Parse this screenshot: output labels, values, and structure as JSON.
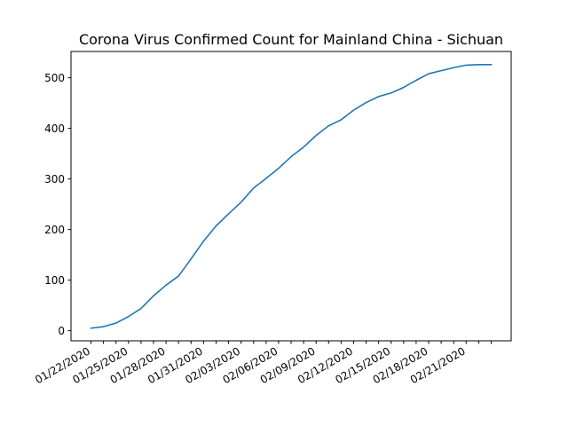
{
  "chart_data": {
    "type": "line",
    "title": "Corona Virus Confirmed Count for Mainland China - Sichuan",
    "xlabel": "",
    "ylabel": "",
    "grid": false,
    "x": [
      "01/22/2020",
      "01/23/2020",
      "01/24/2020",
      "01/25/2020",
      "01/26/2020",
      "01/27/2020",
      "01/28/2020",
      "01/29/2020",
      "01/30/2020",
      "01/31/2020",
      "02/01/2020",
      "02/02/2020",
      "02/03/2020",
      "02/04/2020",
      "02/05/2020",
      "02/06/2020",
      "02/07/2020",
      "02/08/2020",
      "02/09/2020",
      "02/10/2020",
      "02/11/2020",
      "02/12/2020",
      "02/13/2020",
      "02/14/2020",
      "02/15/2020",
      "02/16/2020",
      "02/17/2020",
      "02/18/2020",
      "02/19/2020",
      "02/20/2020",
      "02/21/2020",
      "02/22/2020",
      "02/23/2020"
    ],
    "x_tick_labels": [
      "01/22/2020",
      "01/25/2020",
      "01/28/2020",
      "01/31/2020",
      "02/03/2020",
      "02/06/2020",
      "02/09/2020",
      "02/12/2020",
      "02/15/2020",
      "02/18/2020",
      "02/21/2020"
    ],
    "series": [
      {
        "values": [
          5,
          8,
          15,
          28,
          44,
          69,
          90,
          108,
          142,
          177,
          207,
          231,
          254,
          282,
          301,
          321,
          344,
          363,
          386,
          405,
          417,
          436,
          451,
          463,
          470,
          481,
          495,
          508,
          514,
          520,
          525,
          526,
          526
        ]
      }
    ],
    "ylim": [
      -20,
      552
    ],
    "y_ticks": [
      0,
      100,
      200,
      300,
      400,
      500
    ],
    "colors": {
      "line": "#1f77b4"
    }
  }
}
